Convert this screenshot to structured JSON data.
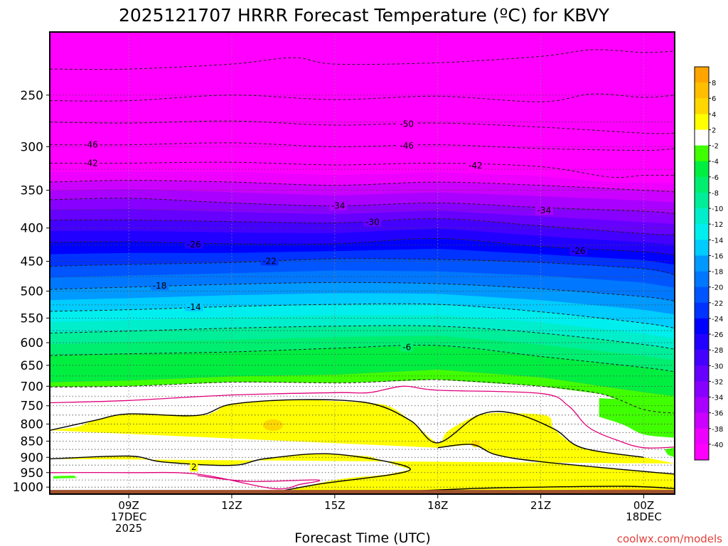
{
  "chart_data": {
    "type": "heatmap",
    "title": "2025121707 HRRR Forecast Temperature (ºC) for KBVY",
    "xlabel": "Forecast Time (UTC)",
    "ylabel": "",
    "credit": "coolwx.com/models",
    "x_range_hours": [
      6.7,
      24.9
    ],
    "x_ticks": [
      {
        "hour": 9,
        "lines": [
          "09Z",
          "17DEC",
          "2025"
        ]
      },
      {
        "hour": 12,
        "lines": [
          "12Z"
        ]
      },
      {
        "hour": 15,
        "lines": [
          "15Z"
        ]
      },
      {
        "hour": 18,
        "lines": [
          "18Z"
        ]
      },
      {
        "hour": 21,
        "lines": [
          "21Z"
        ]
      },
      {
        "hour": 24,
        "lines": [
          "00Z",
          "18DEC"
        ]
      }
    ],
    "y_axis": "pressure_hPa_log",
    "y_range_hPa": [
      1025,
      200
    ],
    "y_ticks": [
      "250",
      "300",
      "350",
      "400",
      "450",
      "500",
      "550",
      "600",
      "650",
      "700",
      "750",
      "800",
      "850",
      "900",
      "950",
      "1000"
    ],
    "dotted_levels_hPa": [
      250,
      275,
      300,
      325,
      350,
      375,
      400,
      425,
      450,
      475,
      500,
      525,
      550,
      575,
      600,
      625,
      650,
      675,
      700,
      725,
      750,
      775,
      800,
      825,
      850,
      875,
      900,
      925,
      950,
      975,
      1000
    ],
    "surface_color": "#a0522d",
    "colorbar": {
      "labels": [
        "8",
        "6",
        "4",
        "2",
        "-2",
        "-4",
        "-6",
        "-8",
        "-10",
        "-12",
        "-14",
        "-16",
        "-18",
        "-20",
        "-22",
        "-24",
        "-26",
        "-28",
        "-30",
        "-32",
        "-34",
        "-36",
        "-38",
        "-40"
      ],
      "colors": [
        "#ffa500",
        "#ffbe00",
        "#ffd700",
        "#ffff00",
        "#ffffff",
        "#40ff00",
        "#00ee40",
        "#00ee70",
        "#00ee99",
        "#00eecc",
        "#00eeee",
        "#00ccff",
        "#0099ff",
        "#0077ff",
        "#0055ff",
        "#0033ff",
        "#0000ff",
        "#2200ff",
        "#4400ff",
        "#6600ff",
        "#8800ff",
        "#aa00ff",
        "#cc00ff",
        "#ee00ff",
        "#ff00ff"
      ]
    },
    "isotherm_profiles": [
      {
        "t": -50,
        "p": [
          [
            6.7,
            228
          ],
          [
            9,
            228
          ],
          [
            12,
            224
          ],
          [
            13.8,
            219
          ],
          [
            15,
            224
          ],
          [
            18,
            223
          ],
          [
            21,
            218
          ],
          [
            22.5,
            213
          ],
          [
            24,
            215
          ],
          [
            24.9,
            214
          ]
        ]
      },
      {
        "t": -50,
        "p": [
          [
            6.7,
            255
          ],
          [
            9,
            255
          ],
          [
            12,
            250
          ],
          [
            15,
            254
          ],
          [
            18,
            251
          ],
          [
            21,
            256
          ],
          [
            22.5,
            249
          ],
          [
            24,
            252
          ],
          [
            24.9,
            250
          ]
        ]
      },
      {
        "t": -50,
        "p": [
          [
            6.7,
            275
          ],
          [
            9,
            276
          ],
          [
            12,
            274
          ],
          [
            15,
            278
          ],
          [
            18,
            276
          ],
          [
            21,
            280
          ],
          [
            24,
            286
          ],
          [
            24.9,
            286
          ]
        ]
      },
      {
        "t": -46,
        "p": [
          [
            6.7,
            298
          ],
          [
            9,
            298
          ],
          [
            12,
            296
          ],
          [
            15,
            300
          ],
          [
            18,
            298
          ],
          [
            21,
            302
          ],
          [
            24,
            304
          ],
          [
            24.9,
            302
          ]
        ]
      },
      {
        "t": -42,
        "p": [
          [
            6.7,
            318
          ],
          [
            9,
            318
          ],
          [
            12,
            317
          ],
          [
            15,
            320
          ],
          [
            18,
            318
          ],
          [
            21,
            322
          ],
          [
            23,
            334
          ],
          [
            24,
            332
          ],
          [
            24.9,
            332
          ]
        ]
      },
      {
        "t": -38,
        "p": [
          [
            6.7,
            340
          ],
          [
            9,
            338
          ],
          [
            12,
            340
          ],
          [
            15,
            344
          ],
          [
            18,
            340
          ],
          [
            21,
            344
          ],
          [
            24,
            350
          ],
          [
            24.9,
            352
          ]
        ]
      },
      {
        "t": -34,
        "p": [
          [
            6.7,
            362
          ],
          [
            9,
            360
          ],
          [
            12,
            366
          ],
          [
            15,
            370
          ],
          [
            18,
            366
          ],
          [
            21,
            372
          ],
          [
            24,
            377
          ],
          [
            24.9,
            380
          ]
        ]
      },
      {
        "t": -30,
        "p": [
          [
            6.7,
            389
          ],
          [
            9,
            389
          ],
          [
            12,
            391
          ],
          [
            15,
            393
          ],
          [
            18,
            387
          ],
          [
            21,
            397
          ],
          [
            24,
            408
          ],
          [
            24.9,
            410
          ]
        ]
      },
      {
        "t": -26,
        "p": [
          [
            6.7,
            421
          ],
          [
            9,
            420
          ],
          [
            12,
            423
          ],
          [
            15,
            423
          ],
          [
            18,
            415
          ],
          [
            21,
            427
          ],
          [
            24,
            435
          ],
          [
            24.9,
            440
          ]
        ]
      },
      {
        "t": -22,
        "p": [
          [
            6.7,
            458
          ],
          [
            9,
            455
          ],
          [
            12,
            452
          ],
          [
            15,
            446
          ],
          [
            18,
            447
          ],
          [
            21,
            452
          ],
          [
            24,
            462
          ],
          [
            24.9,
            472
          ]
        ]
      },
      {
        "t": -18,
        "p": [
          [
            6.7,
            497
          ],
          [
            9,
            493
          ],
          [
            12,
            488
          ],
          [
            15,
            485
          ],
          [
            18,
            487
          ],
          [
            21,
            496
          ],
          [
            24,
            510
          ],
          [
            24.9,
            518
          ]
        ]
      },
      {
        "t": -14,
        "p": [
          [
            6.7,
            537
          ],
          [
            9,
            534
          ],
          [
            12,
            528
          ],
          [
            15,
            524
          ],
          [
            18,
            524
          ],
          [
            21,
            538
          ],
          [
            24,
            560
          ],
          [
            24.9,
            570
          ]
        ]
      },
      {
        "t": -10,
        "p": [
          [
            6.7,
            580
          ],
          [
            9,
            576
          ],
          [
            12,
            570
          ],
          [
            15,
            566
          ],
          [
            18,
            566
          ],
          [
            21,
            580
          ],
          [
            24,
            604
          ],
          [
            24.9,
            614
          ]
        ]
      },
      {
        "t": -6,
        "p": [
          [
            6.7,
            628
          ],
          [
            9,
            624
          ],
          [
            12,
            620
          ],
          [
            15,
            612
          ],
          [
            18,
            606
          ],
          [
            21,
            630
          ],
          [
            24,
            655
          ],
          [
            24.9,
            665
          ]
        ]
      }
    ],
    "contour_labels": [
      {
        "text": "-46",
        "hour": 7.9,
        "p": 298
      },
      {
        "text": "-42",
        "hour": 7.9,
        "p": 318
      },
      {
        "text": "-50",
        "hour": 17.1,
        "p": 277
      },
      {
        "text": "-46",
        "hour": 17.1,
        "p": 299
      },
      {
        "text": "-42",
        "hour": 19.1,
        "p": 321
      },
      {
        "text": "-34",
        "hour": 15.1,
        "p": 370
      },
      {
        "text": "-34",
        "hour": 21.1,
        "p": 376
      },
      {
        "text": "-30",
        "hour": 16.1,
        "p": 392
      },
      {
        "text": "-26",
        "hour": 10.9,
        "p": 424
      },
      {
        "text": "-26",
        "hour": 22.1,
        "p": 434
      },
      {
        "text": "-22",
        "hour": 13.1,
        "p": 450
      },
      {
        "text": "-18",
        "hour": 9.9,
        "p": 491
      },
      {
        "text": "-14",
        "hour": 10.9,
        "p": 529
      },
      {
        "text": "-6",
        "hour": 17.1,
        "p": 610
      },
      {
        "text": "2",
        "hour": 10.9,
        "p": 932
      }
    ],
    "bands": [
      {
        "name": "minus2_to_minus4",
        "lower_p": [
          [
            6.7,
            702
          ],
          [
            9,
            700
          ],
          [
            12,
            690
          ],
          [
            15,
            692
          ],
          [
            16,
            690
          ],
          [
            18,
            684
          ],
          [
            21,
            700
          ],
          [
            22.8,
            720
          ],
          [
            24,
            760
          ],
          [
            24.9,
            770
          ]
        ],
        "upper_p": [
          [
            6.7,
            690
          ],
          [
            9,
            686
          ],
          [
            12,
            676
          ],
          [
            15,
            672
          ],
          [
            18,
            660
          ],
          [
            21,
            678
          ],
          [
            24,
            715
          ],
          [
            24.9,
            725
          ]
        ]
      },
      {
        "name": "zero_to_minus2_white",
        "lower_p": [
          [
            6.7,
            742
          ],
          [
            9,
            736
          ],
          [
            12,
            722
          ],
          [
            15,
            716
          ],
          [
            16,
            716
          ],
          [
            17,
            700
          ],
          [
            18,
            710
          ],
          [
            21,
            718
          ],
          [
            22.2,
            722
          ],
          [
            23.4,
            800
          ],
          [
            24,
            840
          ],
          [
            24.9,
            845
          ]
        ],
        "upper_p": [
          [
            6.7,
            702
          ],
          [
            9,
            700
          ],
          [
            12,
            690
          ],
          [
            15,
            692
          ],
          [
            16,
            690
          ],
          [
            18,
            684
          ],
          [
            21,
            700
          ],
          [
            22.8,
            720
          ],
          [
            24,
            760
          ],
          [
            24.9,
            770
          ]
        ]
      }
    ],
    "warm_zone": {
      "top_p": [
        [
          6.7,
          818
        ],
        [
          7.5,
          808
        ],
        [
          8,
          790
        ],
        [
          9,
          772
        ],
        [
          11,
          776
        ],
        [
          11.5,
          766
        ],
        [
          12,
          746
        ],
        [
          13.8,
          734
        ],
        [
          15,
          738
        ],
        [
          16,
          743
        ],
        [
          16.6,
          752
        ],
        [
          17.2,
          790
        ],
        [
          18,
          855
        ],
        [
          18.3,
          820
        ],
        [
          19.2,
          775
        ],
        [
          20.2,
          770
        ],
        [
          21.2,
          778
        ],
        [
          21.4,
          815
        ],
        [
          22.2,
          870
        ],
        [
          24,
          900
        ],
        [
          24.9,
          920
        ]
      ],
      "bottom_p": [
        [
          6.7,
          905
        ],
        [
          9,
          896
        ],
        [
          10,
          915
        ],
        [
          11,
          926
        ],
        [
          12,
          926
        ],
        [
          13,
          904
        ],
        [
          14,
          890
        ],
        [
          15,
          890
        ],
        [
          16,
          897
        ],
        [
          17.2,
          940
        ],
        [
          16.5,
          957
        ],
        [
          15,
          975
        ],
        [
          14,
          1000
        ],
        [
          13.3,
          1025
        ],
        [
          24.9,
          1025
        ],
        [
          24.9,
          955
        ],
        [
          24,
          946
        ],
        [
          21,
          914
        ],
        [
          19.7,
          892
        ],
        [
          19,
          860
        ],
        [
          18,
          870
        ]
      ]
    },
    "magenta_isotherm_0": [
      [
        6.7,
        742
      ],
      [
        9,
        736
      ],
      [
        12,
        722
      ],
      [
        15,
        716
      ],
      [
        16,
        716
      ],
      [
        17,
        700
      ],
      [
        18,
        710
      ],
      [
        21,
        718
      ],
      [
        21.8,
        750
      ],
      [
        22.4,
        810
      ],
      [
        23.3,
        850
      ],
      [
        24,
        870
      ],
      [
        24.9,
        868
      ]
    ],
    "black_isotherm_2_top": [
      [
        6.7,
        818
      ],
      [
        8,
        790
      ],
      [
        9,
        772
      ],
      [
        11,
        776
      ],
      [
        12,
        746
      ],
      [
        14,
        734
      ],
      [
        16,
        743
      ],
      [
        17.2,
        790
      ],
      [
        18,
        855
      ],
      [
        19.2,
        775
      ],
      [
        20.2,
        770
      ],
      [
        21.4,
        815
      ],
      [
        22.2,
        870
      ],
      [
        24,
        900
      ]
    ],
    "black_isotherm_2_bottom": [
      [
        6.7,
        905
      ],
      [
        9,
        896
      ],
      [
        10,
        915
      ],
      [
        12,
        926
      ],
      [
        13,
        904
      ],
      [
        15,
        890
      ],
      [
        17.2,
        940
      ],
      [
        14.5,
        990
      ],
      [
        13.2,
        1020
      ]
    ],
    "black_isotherm_4": [
      [
        16.2,
        1020
      ],
      [
        19,
        1005
      ],
      [
        21,
        1000
      ],
      [
        23.5,
        997
      ],
      [
        24.9,
        1005
      ]
    ],
    "magenta_lower": [
      [
        6.7,
        950
      ],
      [
        9,
        950
      ],
      [
        11,
        955
      ],
      [
        13.2,
        1005
      ],
      [
        14,
        990
      ],
      [
        14.5,
        975
      ],
      [
        12.5,
        980
      ],
      [
        11,
        960
      ]
    ],
    "orange_zone_p": [
      [
        18,
        1025
      ],
      [
        21,
        1012
      ],
      [
        23.5,
        1005
      ],
      [
        24.9,
        1010
      ],
      [
        24.9,
        1025
      ]
    ]
  }
}
